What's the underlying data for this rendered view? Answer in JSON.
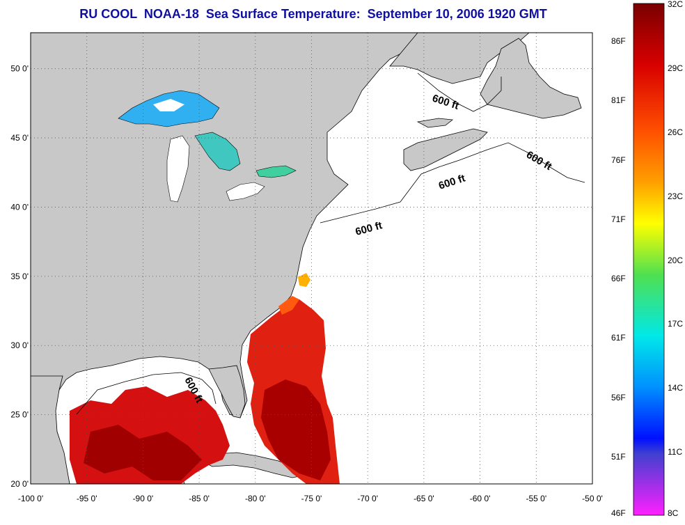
{
  "title": "RU COOL  NOAA-18  Sea Surface Temperature:  September 10, 2006 1920 GMT",
  "map": {
    "lon_ticks": [
      "-100 0'",
      "-95 0'",
      "-90 0'",
      "-85 0'",
      "-80 0'",
      "-75 0'",
      "-70 0'",
      "-65 0'",
      "-60 0'",
      "-55 0'",
      "-50 0'"
    ],
    "lat_ticks": [
      "50 0'",
      "45 0'",
      "40 0'",
      "35 0'",
      "30 0'",
      "25 0'",
      "20 0'"
    ],
    "contour_labels": [
      "600 ft",
      "600 ft",
      "600 ft",
      "600 ft",
      "600 ft"
    ],
    "colors": {
      "land": "#c8c8c8",
      "water": "#ffffff",
      "grid": "#555555"
    }
  },
  "colorbar": {
    "celsius": [
      "32C",
      "29C",
      "26C",
      "23C",
      "20C",
      "17C",
      "14C",
      "11C",
      "8C"
    ],
    "fahrenheit": [
      "86F",
      "81F",
      "76F",
      "71F",
      "66F",
      "61F",
      "56F",
      "51F",
      "46F"
    ],
    "stops": [
      "#8b0000",
      "#d80000",
      "#ff4000",
      "#ff9000",
      "#ffff00",
      "#60e060",
      "#00e0e0",
      "#00a0ff",
      "#0020ff",
      "#0000c0",
      "#8040c0",
      "#ff00ff"
    ]
  }
}
